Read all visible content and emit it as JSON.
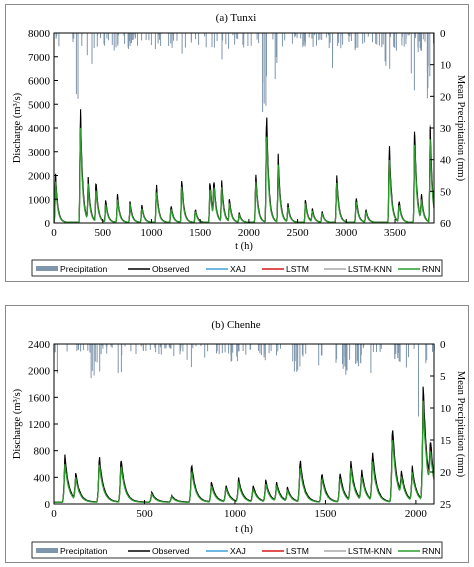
{
  "chart_data": [
    {
      "type": "line",
      "title": "(a) Tunxi",
      "xlabel": "t (h)",
      "ylabel": "Discharge (m³/s)",
      "ylabel2": "Mean Precipitation (mm)",
      "xlim": [
        0,
        3900
      ],
      "ylim": [
        0,
        8000
      ],
      "y2lim": [
        60,
        0
      ],
      "x_ticks": [
        "0",
        "500",
        "1000",
        "1500",
        "2000",
        "2500",
        "3000",
        "3500"
      ],
      "y_ticks": [
        "0",
        "1000",
        "2000",
        "3000",
        "4000",
        "5000",
        "6000",
        "7000",
        "8000"
      ],
      "y2_ticks": [
        "0",
        "10",
        "20",
        "30",
        "40",
        "50",
        "60"
      ],
      "grid": false,
      "legend_position": "bottom",
      "series": [
        {
          "name": "Precipitation",
          "color": "#7f96ad",
          "style": "bar-inverted"
        },
        {
          "name": "Observed",
          "color": "#000000"
        },
        {
          "name": "XAJ",
          "color": "#3ea2d8"
        },
        {
          "name": "LSTM",
          "color": "#d81818"
        },
        {
          "name": "LSTM-KNN",
          "color": "#a9a9a9"
        },
        {
          "name": "RNN",
          "color": "#2f9a2f"
        }
      ],
      "peaks": [
        {
          "t": 15,
          "q": 2150
        },
        {
          "t": 270,
          "q": 5300
        },
        {
          "t": 350,
          "q": 1850
        },
        {
          "t": 430,
          "q": 1850
        },
        {
          "t": 530,
          "q": 1000
        },
        {
          "t": 650,
          "q": 1250
        },
        {
          "t": 780,
          "q": 900
        },
        {
          "t": 900,
          "q": 800
        },
        {
          "t": 1050,
          "q": 1750
        },
        {
          "t": 1200,
          "q": 800
        },
        {
          "t": 1310,
          "q": 1950
        },
        {
          "t": 1450,
          "q": 600
        },
        {
          "t": 1600,
          "q": 1950
        },
        {
          "t": 1640,
          "q": 1700
        },
        {
          "t": 1720,
          "q": 1800
        },
        {
          "t": 1800,
          "q": 1000
        },
        {
          "t": 1900,
          "q": 400
        },
        {
          "t": 2070,
          "q": 2250
        },
        {
          "t": 2180,
          "q": 5200
        },
        {
          "t": 2300,
          "q": 3000
        },
        {
          "t": 2400,
          "q": 800
        },
        {
          "t": 2580,
          "q": 1000
        },
        {
          "t": 2650,
          "q": 600
        },
        {
          "t": 2750,
          "q": 500
        },
        {
          "t": 2900,
          "q": 2200
        },
        {
          "t": 3100,
          "q": 1200
        },
        {
          "t": 3200,
          "q": 600
        },
        {
          "t": 3440,
          "q": 3600
        },
        {
          "t": 3540,
          "q": 1000
        },
        {
          "t": 3700,
          "q": 4300
        },
        {
          "t": 3770,
          "q": 1100
        },
        {
          "t": 3860,
          "q": 4300
        }
      ]
    },
    {
      "type": "line",
      "title": "(b) Chenhe",
      "xlabel": "t (h)",
      "ylabel": "Discharge (m³/s)",
      "ylabel2": "Mean Precipitation (mm)",
      "xlim": [
        0,
        2100
      ],
      "ylim": [
        0,
        2400
      ],
      "y2lim": [
        25,
        0
      ],
      "x_ticks": [
        "0",
        "500",
        "1000",
        "1500",
        "2000"
      ],
      "y_ticks": [
        "0",
        "400",
        "800",
        "1200",
        "1600",
        "2000",
        "2400"
      ],
      "y2_ticks": [
        "0",
        "5",
        "10",
        "15",
        "20",
        "25"
      ],
      "grid": false,
      "legend_position": "bottom",
      "series": [
        {
          "name": "Precipitation",
          "color": "#7f96ad",
          "style": "bar-inverted"
        },
        {
          "name": "Observed",
          "color": "#000000"
        },
        {
          "name": "XAJ",
          "color": "#3ea2d8"
        },
        {
          "name": "LSTM",
          "color": "#d81818"
        },
        {
          "name": "LSTM-KNN",
          "color": "#a9a9a9"
        },
        {
          "name": "RNN",
          "color": "#2f9a2f"
        }
      ],
      "peaks": [
        {
          "t": 60,
          "q": 700
        },
        {
          "t": 120,
          "q": 400
        },
        {
          "t": 250,
          "q": 720
        },
        {
          "t": 370,
          "q": 680
        },
        {
          "t": 540,
          "q": 150
        },
        {
          "t": 650,
          "q": 100
        },
        {
          "t": 760,
          "q": 600
        },
        {
          "t": 870,
          "q": 300
        },
        {
          "t": 950,
          "q": 250
        },
        {
          "t": 1020,
          "q": 350
        },
        {
          "t": 1100,
          "q": 250
        },
        {
          "t": 1170,
          "q": 320
        },
        {
          "t": 1230,
          "q": 280
        },
        {
          "t": 1290,
          "q": 200
        },
        {
          "t": 1360,
          "q": 650
        },
        {
          "t": 1480,
          "q": 450
        },
        {
          "t": 1580,
          "q": 450
        },
        {
          "t": 1640,
          "q": 600
        },
        {
          "t": 1700,
          "q": 450
        },
        {
          "t": 1760,
          "q": 750
        },
        {
          "t": 1870,
          "q": 1200
        },
        {
          "t": 1920,
          "q": 350
        },
        {
          "t": 1980,
          "q": 500
        },
        {
          "t": 2040,
          "q": 1750
        },
        {
          "t": 2080,
          "q": 700
        }
      ]
    }
  ]
}
